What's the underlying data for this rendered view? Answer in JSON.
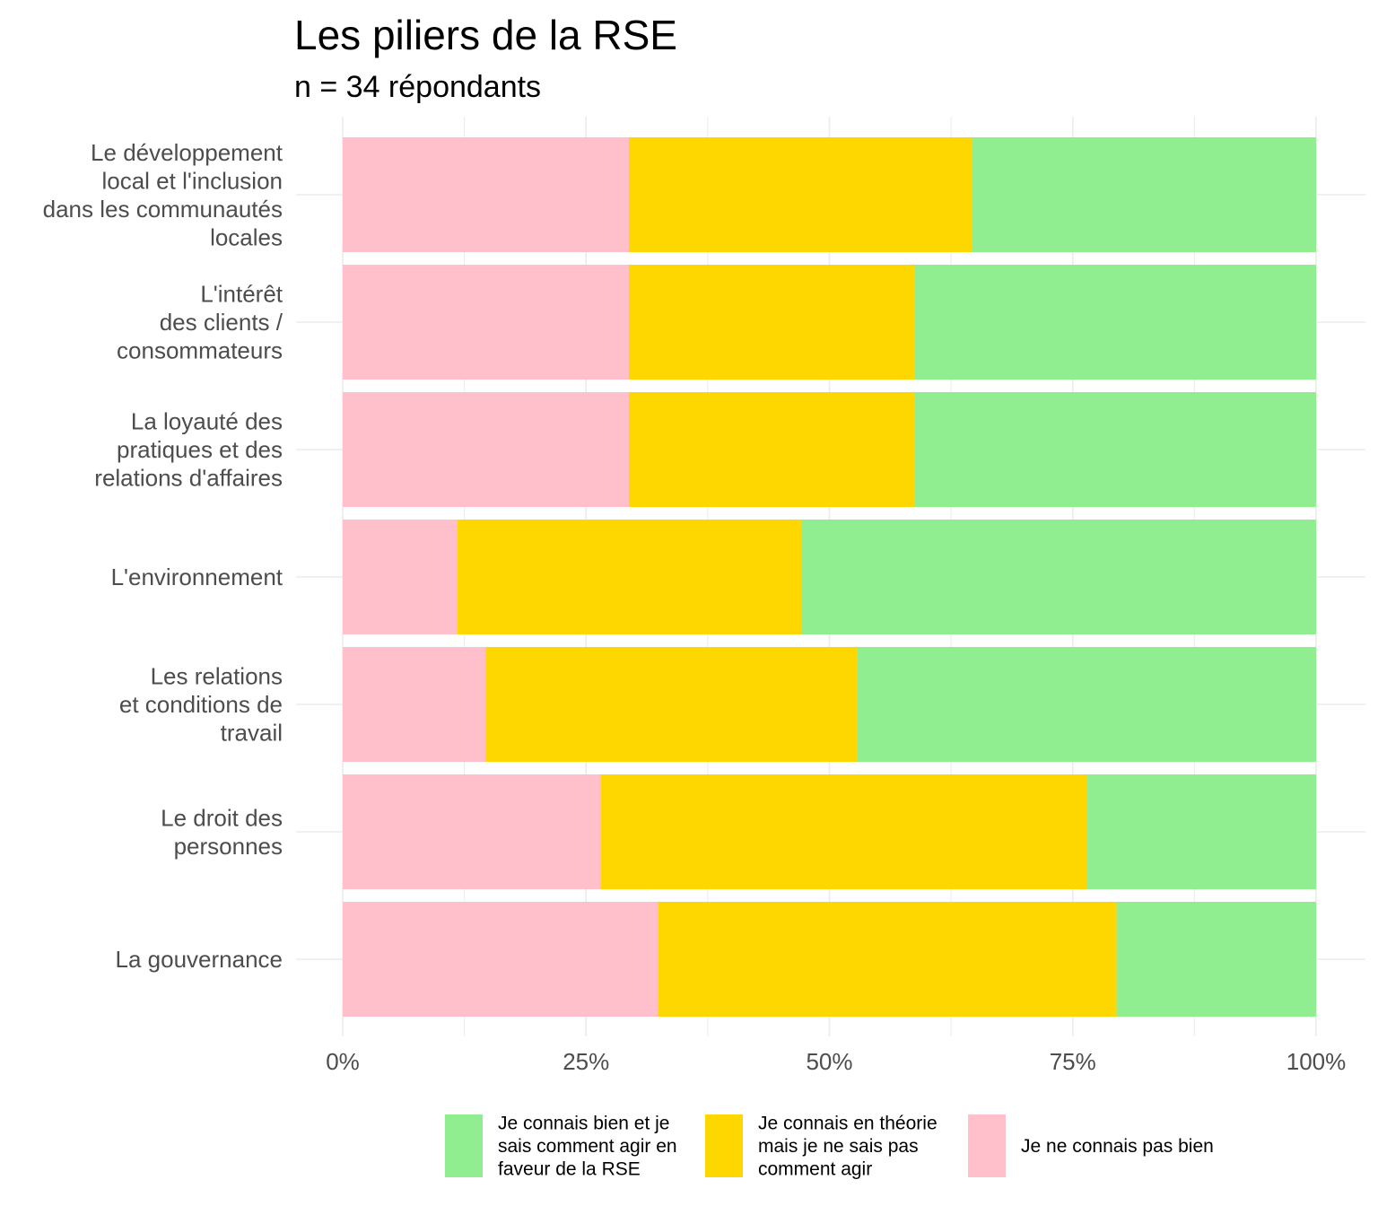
{
  "chart_data": {
    "type": "bar",
    "orientation": "horizontal",
    "stacked": "percent",
    "title": "Les piliers de la RSE",
    "subtitle": "n = 34 répondants",
    "categories": [
      [
        "Le développement",
        "local et l'inclusion",
        "dans les communautés",
        "locales"
      ],
      [
        "L'intérêt",
        "des clients /",
        "consommateurs"
      ],
      [
        "La loyauté des",
        "pratiques et des",
        "relations d'affaires"
      ],
      [
        "L'environnement"
      ],
      [
        "Les relations",
        "et conditions de",
        "travail"
      ],
      [
        "Le droit des",
        "personnes"
      ],
      [
        "La gouvernance"
      ]
    ],
    "series": [
      {
        "name": "Je ne connais pas bien",
        "color": "#FFC0CB",
        "values": [
          29.4,
          29.4,
          29.4,
          11.8,
          14.7,
          26.5,
          32.4
        ]
      },
      {
        "name": "Je connais en théorie mais je ne sais pas comment agir",
        "color": "#FFD700",
        "values": [
          35.3,
          29.4,
          29.4,
          35.3,
          38.2,
          50.0,
          47.1
        ]
      },
      {
        "name": "Je connais bien et je sais comment agir en faveur de la RSE",
        "color": "#90EE90",
        "values": [
          35.3,
          41.2,
          41.2,
          52.9,
          47.1,
          23.5,
          20.5
        ]
      }
    ],
    "xlim": [
      0,
      100
    ],
    "xticks": [
      "0%",
      "25%",
      "50%",
      "75%",
      "100%"
    ],
    "grid": true,
    "legend": {
      "position": "bottom",
      "entries": [
        {
          "lines": [
            "Je connais bien et je",
            "sais comment agir en",
            "faveur de la RSE"
          ],
          "color": "#90EE90"
        },
        {
          "lines": [
            "Je connais en théorie",
            "mais je ne sais pas",
            "comment agir"
          ],
          "color": "#FFD700"
        },
        {
          "lines": [
            "Je ne connais pas bien"
          ],
          "color": "#FFC0CB"
        }
      ]
    }
  }
}
